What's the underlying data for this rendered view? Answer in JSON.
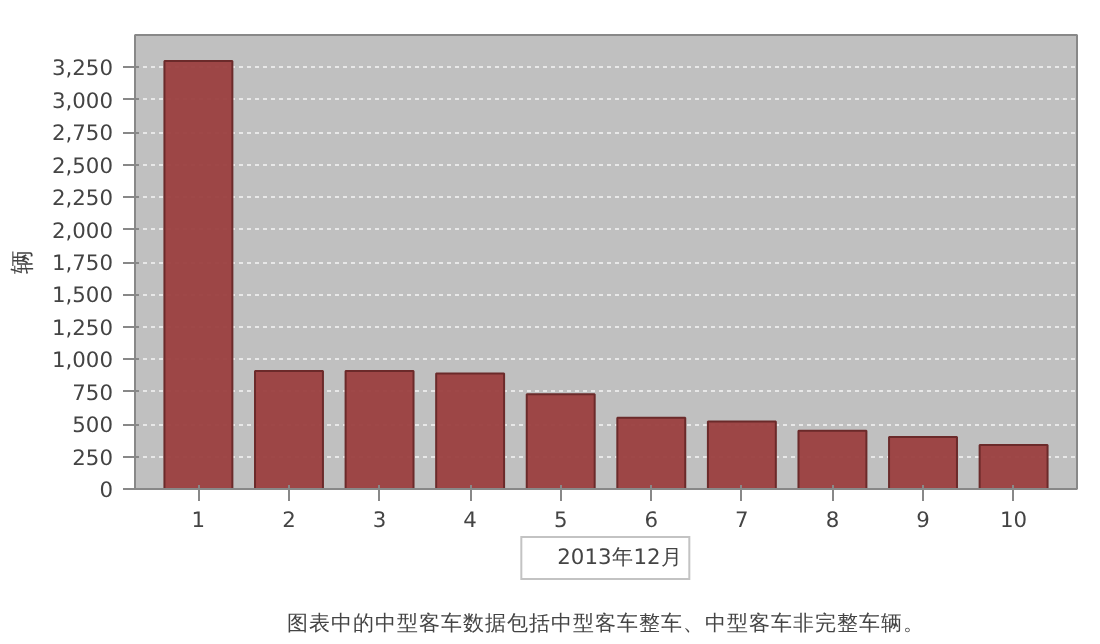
{
  "chart_data": {
    "type": "bar",
    "ylabel": "辆",
    "categories": [
      "1",
      "2",
      "3",
      "4",
      "5",
      "6",
      "7",
      "8",
      "9",
      "10"
    ],
    "series": [
      {
        "name": "2013年12月",
        "color": "#9b3f3f",
        "values": [
          3300,
          910,
          910,
          890,
          730,
          550,
          520,
          450,
          400,
          340
        ]
      }
    ],
    "ylim": [
      0,
      3500
    ],
    "yticks": [
      {
        "value": 0,
        "label": "0"
      },
      {
        "value": 250,
        "label": "250"
      },
      {
        "value": 500,
        "label": "500"
      },
      {
        "value": 750,
        "label": "750"
      },
      {
        "value": 1000,
        "label": "1,000"
      },
      {
        "value": 1250,
        "label": "1,250"
      },
      {
        "value": 1500,
        "label": "1,500"
      },
      {
        "value": 1750,
        "label": "1,750"
      },
      {
        "value": 2000,
        "label": "2,000"
      },
      {
        "value": 2250,
        "label": "2,250"
      },
      {
        "value": 2500,
        "label": "2,500"
      },
      {
        "value": 2750,
        "label": "2,750"
      },
      {
        "value": 3000,
        "label": "3,000"
      },
      {
        "value": 3250,
        "label": "3,250"
      }
    ],
    "grid": "y",
    "legend": "bottom",
    "annotations": [
      "图表中的中型客车数据包括中型客车整车、中型客车非完整车辆。"
    ]
  }
}
